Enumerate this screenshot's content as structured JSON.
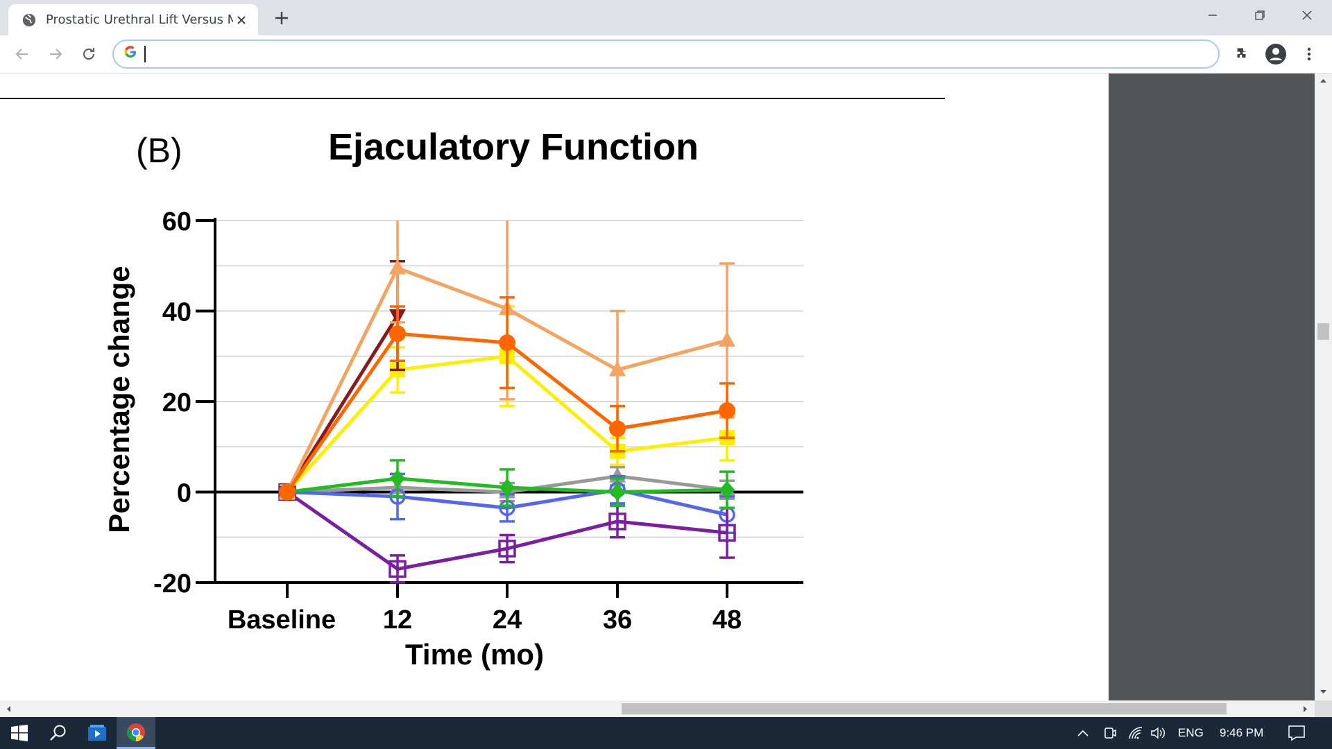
{
  "browser": {
    "tab_title": "Prostatic Urethral Lift Versus Medical",
    "address_value": "",
    "colors": {
      "tabstrip": "#dee1e6",
      "side_panel": "#525659",
      "taskbar": "#1b2838"
    }
  },
  "figure": {
    "panel_label": "(B)",
    "title": "Ejaculatory Function"
  },
  "chart_data": {
    "type": "line",
    "title": "Ejaculatory Function",
    "xlabel": "Time (mo)",
    "ylabel": "Percentage change",
    "categories": [
      "Baseline",
      "12",
      "24",
      "36",
      "48"
    ],
    "ylim": [
      -20,
      60
    ],
    "yticks": [
      "60",
      "40",
      "20",
      "0",
      "-20"
    ],
    "grid": true,
    "series": [
      {
        "color": "#f4a460",
        "marker": "triangle-up",
        "values": [
          0,
          49.5,
          40.5,
          27,
          33.5
        ],
        "err": [
          0,
          12,
          20,
          13,
          17
        ]
      },
      {
        "color": "#8b1a1a",
        "marker": "triangle-down",
        "values": [
          0,
          39,
          null,
          null,
          null
        ],
        "err": [
          0,
          12,
          0,
          0,
          0
        ]
      },
      {
        "color": "#ff6600",
        "marker": "circle",
        "values": [
          0,
          35,
          33,
          14,
          18
        ],
        "err": [
          0,
          6,
          10,
          5,
          6
        ]
      },
      {
        "color": "#ffee00",
        "marker": "square",
        "values": [
          0,
          27,
          30,
          9,
          12
        ],
        "err": [
          0,
          5,
          11,
          3,
          5
        ]
      },
      {
        "color": "#999999",
        "marker": "triangle-up",
        "values": [
          0,
          1,
          0,
          3.5,
          0.5
        ],
        "err": [
          0,
          2,
          2,
          2,
          2
        ]
      },
      {
        "color": "#22bb22",
        "marker": "diamond",
        "values": [
          0,
          3,
          1,
          0,
          0.5
        ],
        "err": [
          0,
          4,
          4,
          3,
          4
        ]
      },
      {
        "color": "#5566ee",
        "marker": "circle-open",
        "values": [
          0,
          -1,
          -3.5,
          0.5,
          -5
        ],
        "err": [
          0,
          5,
          3,
          3,
          4
        ]
      },
      {
        "color": "#7a1fa2",
        "marker": "square-open",
        "values": [
          0,
          -17,
          -12.5,
          -6.5,
          -9
        ],
        "err": [
          0,
          3,
          3,
          3.5,
          5.5
        ]
      }
    ]
  },
  "taskbar": {
    "language": "ENG",
    "time": "9:46 PM"
  }
}
